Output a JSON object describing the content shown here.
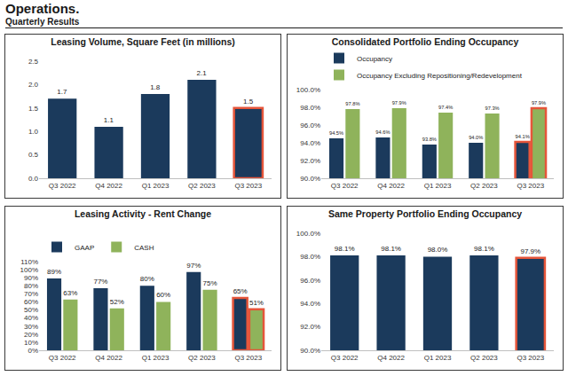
{
  "header": {
    "title": "Operations.",
    "subtitle": "Quarterly Results"
  },
  "chart_data": [
    {
      "type": "bar",
      "title": "Leasing Volume, Square Feet (in millions)",
      "categories": [
        "Q3 2022",
        "Q4 2022",
        "Q1 2023",
        "Q2 2023",
        "Q3 2023"
      ],
      "values": [
        1.7,
        1.1,
        1.8,
        2.1,
        1.5
      ],
      "color": "#1b3a5c",
      "ylim": [
        0,
        2.5
      ],
      "yticks": [
        {
          "value": 0,
          "label": "0.0"
        },
        0.5,
        {
          "value": 1,
          "label": "1.0"
        },
        1.5,
        {
          "value": 2,
          "label": "2.0"
        },
        2.5
      ],
      "grid": false,
      "data_labels": true
    },
    {
      "type": "bar",
      "title": "Consolidated Portfolio Ending Occupancy",
      "categories": [
        "Q3 2022",
        "Q4 2022",
        "Q1 2023",
        "Q2 2023",
        "Q3 2023"
      ],
      "series": [
        {
          "name": "Occupancy",
          "color": "#1b3a5c",
          "values": [
            94.5,
            94.6,
            93.8,
            94.0,
            94.1
          ],
          "value_labels": [
            "94.5%",
            "94.6%",
            "93.8%",
            "94.0%",
            "94.1%"
          ]
        },
        {
          "name": "Occupancy Excluding Repositioning/Redevelopment",
          "color": "#8fb35b",
          "values": [
            97.8,
            97.9,
            97.4,
            97.3,
            97.9
          ],
          "value_labels": [
            "97.8%",
            "97.9%",
            "97.4%",
            "97.3%",
            "97.9%"
          ]
        }
      ],
      "ylim": [
        90,
        100
      ],
      "yticks": [
        {
          "value": 90,
          "label": "90.0%"
        },
        {
          "value": 92,
          "label": "92.0%"
        },
        {
          "value": 94,
          "label": "94.0%"
        },
        {
          "value": 96,
          "label": "96.0%"
        },
        {
          "value": 98,
          "label": "98.0%"
        },
        {
          "value": 100,
          "label": "100.0%"
        }
      ],
      "grid": false,
      "data_labels": true,
      "legend": "top-left"
    },
    {
      "type": "bar",
      "title": "Leasing Activity - Rent Change",
      "categories": [
        "Q3 2022",
        "Q4 2022",
        "Q1 2023",
        "Q2 2023",
        "Q3 2023"
      ],
      "series": [
        {
          "name": "GAAP",
          "color": "#1b3a5c",
          "values": [
            89,
            77,
            80,
            97,
            65
          ],
          "value_labels": [
            "89%",
            "77%",
            "80%",
            "97%",
            "65%"
          ]
        },
        {
          "name": "CASH",
          "color": "#8fb35b",
          "values": [
            63,
            52,
            60,
            75,
            51
          ],
          "value_labels": [
            "63%",
            "52%",
            "60%",
            "75%",
            "51%"
          ]
        }
      ],
      "ylim": [
        0,
        110
      ],
      "yticks": [
        {
          "value": 0,
          "label": "0%"
        },
        {
          "value": 10,
          "label": "10%"
        },
        {
          "value": 20,
          "label": "20%"
        },
        {
          "value": 30,
          "label": "30%"
        },
        {
          "value": 40,
          "label": "40%"
        },
        {
          "value": 50,
          "label": "50%"
        },
        {
          "value": 60,
          "label": "60%"
        },
        {
          "value": 70,
          "label": "70%"
        },
        {
          "value": 80,
          "label": "80%"
        },
        {
          "value": 90,
          "label": "90%"
        },
        {
          "value": 100,
          "label": "100%"
        },
        {
          "value": 110,
          "label": "110%"
        }
      ],
      "grid": false,
      "data_labels": true,
      "legend": "top-left"
    },
    {
      "type": "bar",
      "title": "Same Property Portfolio Ending Occupancy",
      "categories": [
        "Q3 2022",
        "Q4 2022",
        "Q1 2023",
        "Q2 2023",
        "Q3 2023"
      ],
      "values": [
        98.1,
        98.1,
        98.0,
        98.1,
        97.9
      ],
      "color": "#1b3a5c",
      "value_labels": [
        "98.1%",
        "98.1%",
        "98.0%",
        "98.1%",
        "97.9%"
      ],
      "ylim": [
        90,
        100
      ],
      "yticks": [
        {
          "value": 90,
          "label": "90.0%"
        },
        {
          "value": 92,
          "label": "92.0%"
        },
        {
          "value": 94,
          "label": "94.0%"
        },
        {
          "value": 96,
          "label": "96.0%"
        },
        {
          "value": 98,
          "label": "98.0%"
        },
        {
          "value": 100,
          "label": "100.0%"
        }
      ],
      "grid": false,
      "data_labels": true
    }
  ]
}
